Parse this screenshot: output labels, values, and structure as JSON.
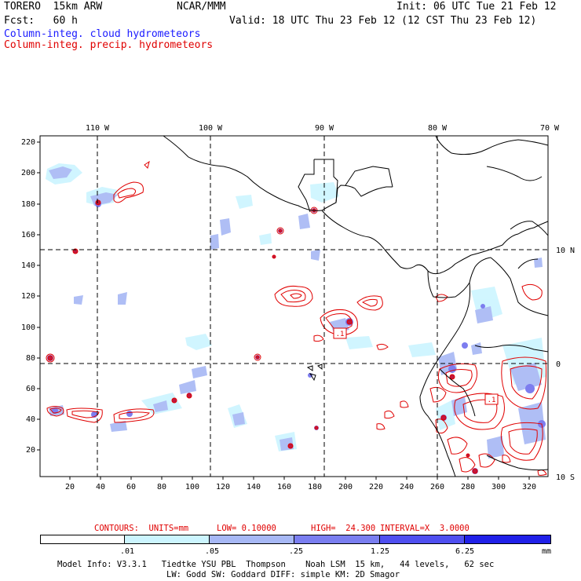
{
  "header": {
    "model": "TORERO  15km ARW",
    "center": "NCAR/MMM",
    "init": "Init: 06 UTC Tue 21 Feb 12",
    "fcst": "Fcst:   60 h",
    "valid": "Valid: 18 UTC Thu 23 Feb 12 (12 CST Thu 23 Feb 12)",
    "field1": "Column-integ. cloud hydrometeors",
    "field2": "Column-integ. precip. hydrometeors"
  },
  "map": {
    "lon_labels": [
      "110 W",
      "100 W",
      "90 W",
      "80 W",
      "70 W"
    ],
    "lat_labels": [
      "10 N",
      "0",
      "10 S"
    ],
    "y_ticks": [
      "220",
      "200",
      "180",
      "160",
      "140",
      "120",
      "100",
      "80",
      "60",
      "40",
      "20"
    ],
    "x_ticks": [
      "20",
      "40",
      "60",
      "80",
      "100",
      "120",
      "140",
      "160",
      "180",
      "200",
      "220",
      "240",
      "260",
      "280",
      "300",
      "320"
    ],
    "center_labels": [
      ".1",
      ".1"
    ]
  },
  "contours_info": {
    "units": "CONTOURS:  UNITS=mm",
    "low": "LOW= 0.10000",
    "high": "HIGH=  24.300",
    "interval": "INTERVAL=X  3.0000"
  },
  "colorbar": {
    "labels": [
      ".01",
      ".05",
      ".25",
      "1.25",
      "6.25"
    ],
    "unit": "mm",
    "colors": [
      "#ffffff",
      "#ccf5ff",
      "#a7b8f5",
      "#7a7ef0",
      "#4f4ff0",
      "#2020e8"
    ]
  },
  "footer": {
    "line1": "Model Info: V3.3.1   Tiedtke YSU PBL  Thompson    Noah LSM  15 km,   44 levels,   62 sec",
    "line2": "LW: Godd SW: Goddard DIFF: simple KM: 2D Smagor"
  }
}
